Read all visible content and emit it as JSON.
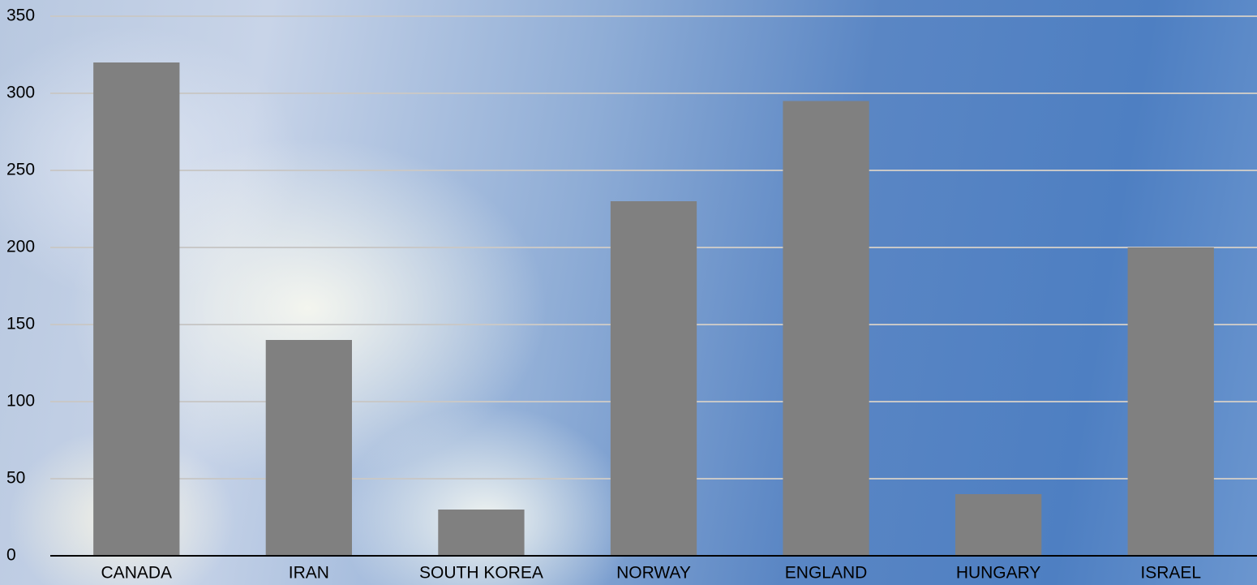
{
  "chart_data": {
    "type": "bar",
    "categories": [
      "CANADA",
      "IRAN",
      "SOUTH KOREA",
      "NORWAY",
      "ENGLAND",
      "HUNGARY",
      "ISRAEL"
    ],
    "values": [
      320,
      140,
      30,
      230,
      295,
      40,
      200
    ],
    "color": "#808080",
    "ylim": [
      0,
      350
    ],
    "yticks": [
      0,
      50,
      100,
      150,
      200,
      250,
      300,
      350
    ],
    "grid": true
  }
}
